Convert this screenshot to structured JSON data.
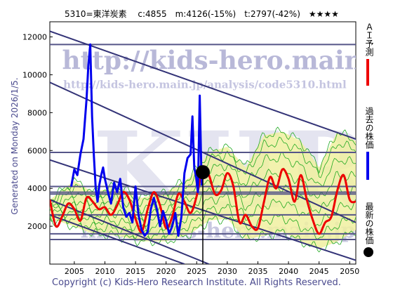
{
  "chart_data": {
    "type": "line",
    "title": "5310=東洋炭素　 c:4855　m:4126(-15%)　t:2797(-42%)　★★★★",
    "xlabel": "",
    "ylabel": "",
    "xlim": [
      2001,
      2051
    ],
    "ylim": [
      0,
      12800
    ],
    "x_ticks": [
      2005,
      2010,
      2015,
      2020,
      2025,
      2030,
      2035,
      2040,
      2045,
      2050
    ],
    "y_ticks": [
      2000,
      4000,
      6000,
      8000,
      10000,
      12000
    ],
    "watermark_text": "http://kids-hero.main.jp/",
    "watermark_text2": "http://kids-hero.main.jp/analysis/code5310.html",
    "watermark_big": "KHRI",
    "watermark_info": "info@kids-hero.main.jp",
    "colors": {
      "past_price": "#0000ee",
      "ai_forecast": "#ee0000",
      "band": "#22aa22",
      "band_fill": "#f0f0a0",
      "trend_lines": "#333377",
      "level_lines": "#555588"
    },
    "series": [
      {
        "name": "過去の株価",
        "x": [
          2004.5,
          2005,
          2005.5,
          2006,
          2006.5,
          2007,
          2007.3,
          2007.6,
          2007.9,
          2008.2,
          2008.5,
          2008.8,
          2009.1,
          2009.4,
          2009.7,
          2010,
          2010.5,
          2011,
          2011.5,
          2012,
          2012.5,
          2013,
          2013.5,
          2014,
          2014.5,
          2015,
          2015.5,
          2016,
          2016.5,
          2017,
          2017.5,
          2018,
          2018.5,
          2019,
          2019.5,
          2020,
          2020.5,
          2021,
          2021.5,
          2022,
          2022.5,
          2023,
          2023.5,
          2024,
          2024.3,
          2024.6,
          2024.9,
          2025.2,
          2025.5,
          2025.8,
          2026.1
        ],
        "values": [
          4100,
          5000,
          4700,
          5800,
          6600,
          8700,
          10500,
          11600,
          7800,
          5700,
          4000,
          3300,
          4200,
          4700,
          5100,
          4500,
          3800,
          3200,
          4300,
          3800,
          4500,
          3000,
          2500,
          2700,
          2200,
          4100,
          2600,
          1800,
          1500,
          1700,
          2900,
          3500,
          2900,
          2000,
          2800,
          2300,
          1600,
          2000,
          2700,
          1500,
          2500,
          4800,
          5600,
          5800,
          7800,
          5100,
          4600,
          3800,
          8900,
          4200,
          4855
        ]
      },
      {
        "name": "ＡＩ予測",
        "x": [
          2001,
          2002,
          2003,
          2004,
          2005,
          2006,
          2007,
          2008,
          2009,
          2010,
          2011,
          2012,
          2013,
          2014,
          2015,
          2016,
          2017,
          2018,
          2019,
          2020,
          2021,
          2022,
          2023,
          2024,
          2025,
          2026,
          2027,
          2028,
          2029,
          2030,
          2031,
          2032,
          2033,
          2034,
          2035,
          2036,
          2037,
          2038,
          2039,
          2040,
          2041,
          2042,
          2043,
          2044,
          2045,
          2046,
          2047,
          2048,
          2049,
          2050,
          2051
        ],
        "values": [
          3400,
          2000,
          2500,
          3200,
          2900,
          2300,
          3500,
          3300,
          2900,
          3000,
          2600,
          3100,
          3800,
          3400,
          2400,
          1700,
          2900,
          3800,
          3100,
          1900,
          2500,
          3700,
          3300,
          2700,
          3600,
          5100,
          4700,
          3700,
          3900,
          4800,
          4100,
          2200,
          2600,
          2000,
          1900,
          3300,
          4600,
          4000,
          5000,
          4500,
          3300,
          4700,
          3400,
          2300,
          1600,
          2200,
          2500,
          3900,
          4700,
          3400,
          3300
        ]
      },
      {
        "name": "最新の株価",
        "x": [
          2026.0
        ],
        "values": [
          4855
        ]
      }
    ],
    "band_upper": [
      [
        2001,
        3400
      ],
      [
        2005,
        4400
      ],
      [
        2008,
        3800
      ],
      [
        2012,
        4100
      ],
      [
        2016,
        3500
      ],
      [
        2020,
        3800
      ],
      [
        2024,
        4600
      ],
      [
        2027,
        5900
      ],
      [
        2030,
        6200
      ],
      [
        2033,
        5100
      ],
      [
        2036,
        6800
      ],
      [
        2039,
        7000
      ],
      [
        2042,
        6500
      ],
      [
        2045,
        5100
      ],
      [
        2048,
        7000
      ],
      [
        2051,
        6500
      ]
    ],
    "band_lower": [
      [
        2001,
        2400
      ],
      [
        2005,
        2000
      ],
      [
        2008,
        1600
      ],
      [
        2012,
        1500
      ],
      [
        2016,
        1200
      ],
      [
        2020,
        1200
      ],
      [
        2024,
        1600
      ],
      [
        2027,
        2300
      ],
      [
        2030,
        2400
      ],
      [
        2033,
        1300
      ],
      [
        2036,
        1500
      ],
      [
        2039,
        1700
      ],
      [
        2042,
        1200
      ],
      [
        2045,
        800
      ],
      [
        2048,
        1200
      ],
      [
        2051,
        1800
      ]
    ],
    "level_lines": [
      11600,
      5900,
      4100,
      3800,
      3700,
      2600,
      1600,
      1300
    ],
    "trend_lines": [
      {
        "x1": 2001,
        "y1": 12300,
        "x2": 2051,
        "y2": 6600
      },
      {
        "x1": 2001,
        "y1": 9600,
        "x2": 2051,
        "y2": 2200
      },
      {
        "x1": 2001,
        "y1": 5500,
        "x2": 2051,
        "y2": 200
      },
      {
        "x1": 2001,
        "y1": 3400,
        "x2": 2027,
        "y2": 0
      },
      {
        "x1": 2001,
        "y1": 2600,
        "x2": 2023,
        "y2": 0
      }
    ],
    "rating": "★★★★"
  },
  "side": {
    "generated": "Generated on Monday 2026/1/5.",
    "legend_ai": "ＡＩ予測",
    "legend_past": "過去の株価",
    "legend_latest": "最新の株価"
  },
  "footer": "Copyright (c) Kids-Hero Research Institute. All Rights Reserved."
}
